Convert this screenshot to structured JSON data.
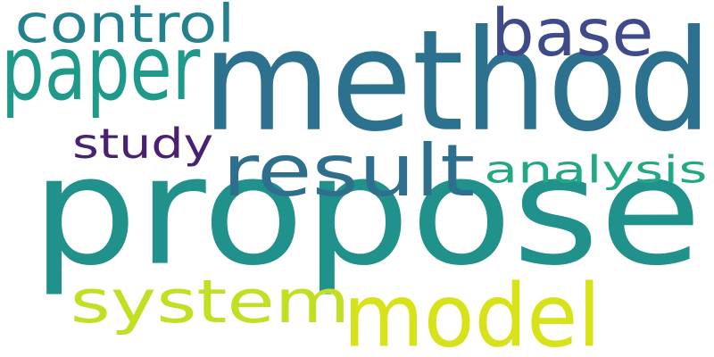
{
  "words": [
    {
      "id": "propose",
      "text": "propose",
      "color": "#21918c"
    },
    {
      "id": "method",
      "text": "method",
      "color": "#2c728e"
    },
    {
      "id": "model",
      "text": "model",
      "color": "#d8e219"
    },
    {
      "id": "system",
      "text": "system",
      "color": "#c2df23"
    },
    {
      "id": "result",
      "text": "result",
      "color": "#2e6f8e"
    },
    {
      "id": "paper",
      "text": "paper",
      "color": "#1f9a8a"
    },
    {
      "id": "base",
      "text": "base",
      "color": "#3e4a89"
    },
    {
      "id": "control",
      "text": "control",
      "color": "#26818e"
    },
    {
      "id": "analysis",
      "text": "analysis",
      "color": "#22a884"
    },
    {
      "id": "study",
      "text": "study",
      "color": "#482173"
    }
  ]
}
